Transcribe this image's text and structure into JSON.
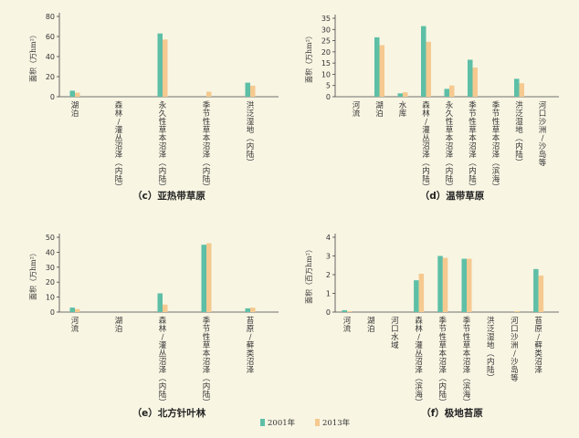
{
  "legend": {
    "series": [
      {
        "name": "2001年",
        "color": "#5dbfa6"
      },
      {
        "name": "2013年",
        "color": "#f5c98f"
      }
    ]
  },
  "chart_data": [
    {
      "type": "bar",
      "title": "（c）亚热带草原",
      "ylabel": "面积（万hm²）",
      "ylim": [
        0,
        80
      ],
      "yticks": [
        0,
        20,
        40,
        60,
        80
      ],
      "categories": [
        "湖泊",
        "森林/灌丛沼泽（内陆）",
        "永久性草本沼泽（内陆）",
        "季节性草本沼泽（内陆）",
        "洪泛湿地（内陆）"
      ],
      "series": [
        {
          "name": "2001年",
          "values": [
            6,
            0,
            63,
            0,
            14
          ]
        },
        {
          "name": "2013年",
          "values": [
            4,
            0,
            57,
            5,
            11
          ]
        }
      ]
    },
    {
      "type": "bar",
      "title": "（d）温带草原",
      "ylabel": "面积（万hm²）",
      "ylim": [
        0,
        35
      ],
      "yticks": [
        0,
        5,
        10,
        15,
        20,
        25,
        30,
        35
      ],
      "categories": [
        "河流",
        "湖泊",
        "水库",
        "森林/灌丛沼泽（内陆）",
        "永久性草本沼泽（内陆）",
        "季节性草本沼泽（内陆）",
        "季节性草本沼泽（滨海）",
        "洪泛湿地（内陆）",
        "河口沙洲/沙岛等"
      ],
      "series": [
        {
          "name": "2001年",
          "values": [
            0,
            26.5,
            1.5,
            31.5,
            3.5,
            16.5,
            0,
            8,
            0
          ]
        },
        {
          "name": "2013年",
          "values": [
            0,
            23,
            2,
            24.5,
            5,
            13,
            0,
            6,
            0
          ]
        }
      ]
    },
    {
      "type": "bar",
      "title": "（e）北方针叶林",
      "ylabel": "面积（万hm²）",
      "ylim": [
        0,
        50
      ],
      "yticks": [
        0,
        10,
        20,
        30,
        40,
        50
      ],
      "categories": [
        "河流",
        "湖泊",
        "森林/灌丛沼泽（内陆）",
        "季节性草本沼泽（内陆）",
        "苔原/藓类沼泽"
      ],
      "series": [
        {
          "name": "2001年",
          "values": [
            3,
            0,
            12.5,
            45,
            2.5
          ]
        },
        {
          "name": "2013年",
          "values": [
            2,
            0,
            5,
            46,
            3
          ]
        }
      ]
    },
    {
      "type": "bar",
      "title": "（f）极地苔原",
      "ylabel": "面积（百万hm²）",
      "ylim": [
        0,
        4
      ],
      "yticks": [
        0,
        1,
        2,
        3,
        4
      ],
      "categories": [
        "河流",
        "湖泊",
        "河口水域",
        "森林/灌丛沼泽（滨海）",
        "季节性草本沼泽（内陆）",
        "季节性草本沼泽（滨海）",
        "洪泛湿地（内陆）",
        "河口沙洲/沙岛等",
        "苔原/藓类沼泽"
      ],
      "series": [
        {
          "name": "2001年",
          "values": [
            0.1,
            0,
            0,
            1.7,
            3.0,
            2.85,
            0,
            0,
            2.3
          ]
        },
        {
          "name": "2013年",
          "values": [
            0.05,
            0,
            0,
            2.05,
            2.9,
            2.85,
            0,
            0.05,
            1.95
          ]
        }
      ]
    }
  ]
}
